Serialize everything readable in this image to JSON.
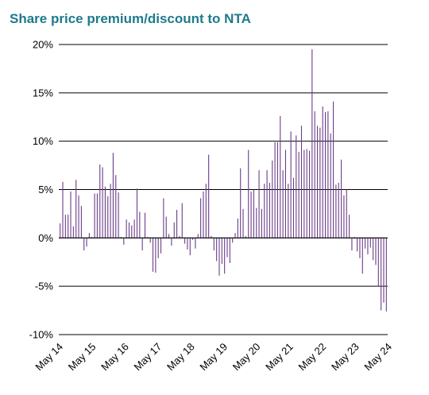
{
  "chart_data": {
    "type": "bar",
    "title": "Share price premium/discount to NTA",
    "xlabel": "",
    "ylabel": "",
    "ylim": [
      -10,
      20
    ],
    "yticks": [
      20,
      15,
      10,
      5,
      0,
      -5,
      -10
    ],
    "ytick_labels": [
      "20%",
      "15%",
      "10%",
      "5%",
      "0%",
      "-5%",
      "-10%"
    ],
    "xtick_labels": [
      "May 14",
      "May 15",
      "May 16",
      "May 17",
      "May 18",
      "May 19",
      "May 20",
      "May 21",
      "May 22",
      "May 23",
      "May 24"
    ],
    "grid": "horizontal",
    "legend": "none",
    "bar_color": "#6b3d8a",
    "values": [
      1.5,
      5.8,
      2.4,
      2.4,
      4.8,
      1.2,
      6.0,
      4.4,
      3.3,
      -1.3,
      -0.9,
      0.5,
      0.1,
      4.6,
      4.6,
      7.6,
      7.3,
      5.3,
      4.3,
      5.6,
      8.8,
      6.5,
      4.7,
      0.1,
      -0.7,
      1.9,
      1.6,
      1.3,
      1.9,
      5.1,
      2.7,
      -1.3,
      2.6,
      0.1,
      -0.5,
      -3.5,
      -3.6,
      -2.1,
      -1.6,
      4.1,
      2.2,
      0.4,
      -0.8,
      1.6,
      2.9,
      0.2,
      3.6,
      -0.6,
      -1.2,
      -1.8,
      -0.2,
      -1.1,
      0.4,
      4.1,
      4.8,
      5.6,
      8.6,
      0.2,
      -1.3,
      -2.4,
      -3.9,
      -2.7,
      -3.7,
      -2.0,
      -2.6,
      -0.5,
      0.5,
      2.0,
      7.2,
      3.0,
      0.2,
      9.1,
      4.8,
      5.0,
      3.1,
      7.0,
      3.0,
      5.6,
      7.0,
      5.7,
      8.0,
      9.9,
      9.9,
      12.6,
      7.0,
      9.1,
      5.6,
      11.0,
      6.2,
      10.6,
      8.9,
      11.6,
      9.1,
      9.2,
      9.0,
      19.5,
      13.1,
      11.6,
      11.4,
      13.6,
      13.0,
      13.1,
      10.8,
      14.1,
      5.5,
      5.7,
      8.1,
      4.4,
      5.0,
      2.4,
      -1.3,
      0.1,
      -1.4,
      -2.1,
      -3.7,
      -1.1,
      -1.7,
      -1.0,
      -2.3,
      -2.8,
      -5.0,
      -7.5,
      -6.7,
      -7.6
    ]
  }
}
